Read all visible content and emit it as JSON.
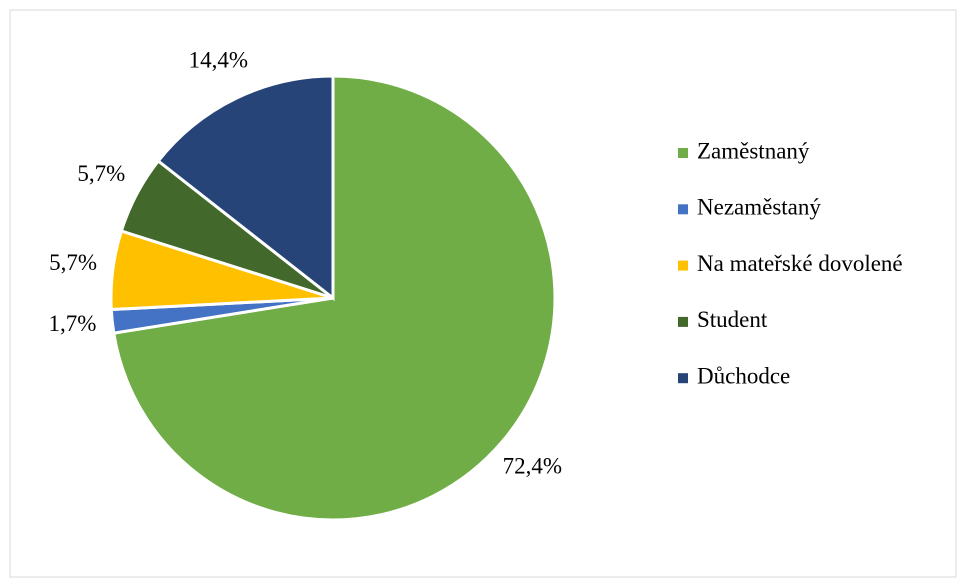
{
  "chart_data": {
    "type": "pie",
    "categories": [
      "Zaměstnaný",
      "Nezaměstaný",
      "Na mateřské dovolené",
      "Student",
      "Důchodce"
    ],
    "values": [
      72.4,
      1.7,
      5.7,
      5.7,
      14.4
    ],
    "value_labels": [
      "72,4%",
      "1,7%",
      "5,7%",
      "5,7%",
      "14,4%"
    ],
    "colors": [
      "#70ad47",
      "#4472c4",
      "#ffc000",
      "#43682b",
      "#264478"
    ],
    "legend": "right"
  }
}
